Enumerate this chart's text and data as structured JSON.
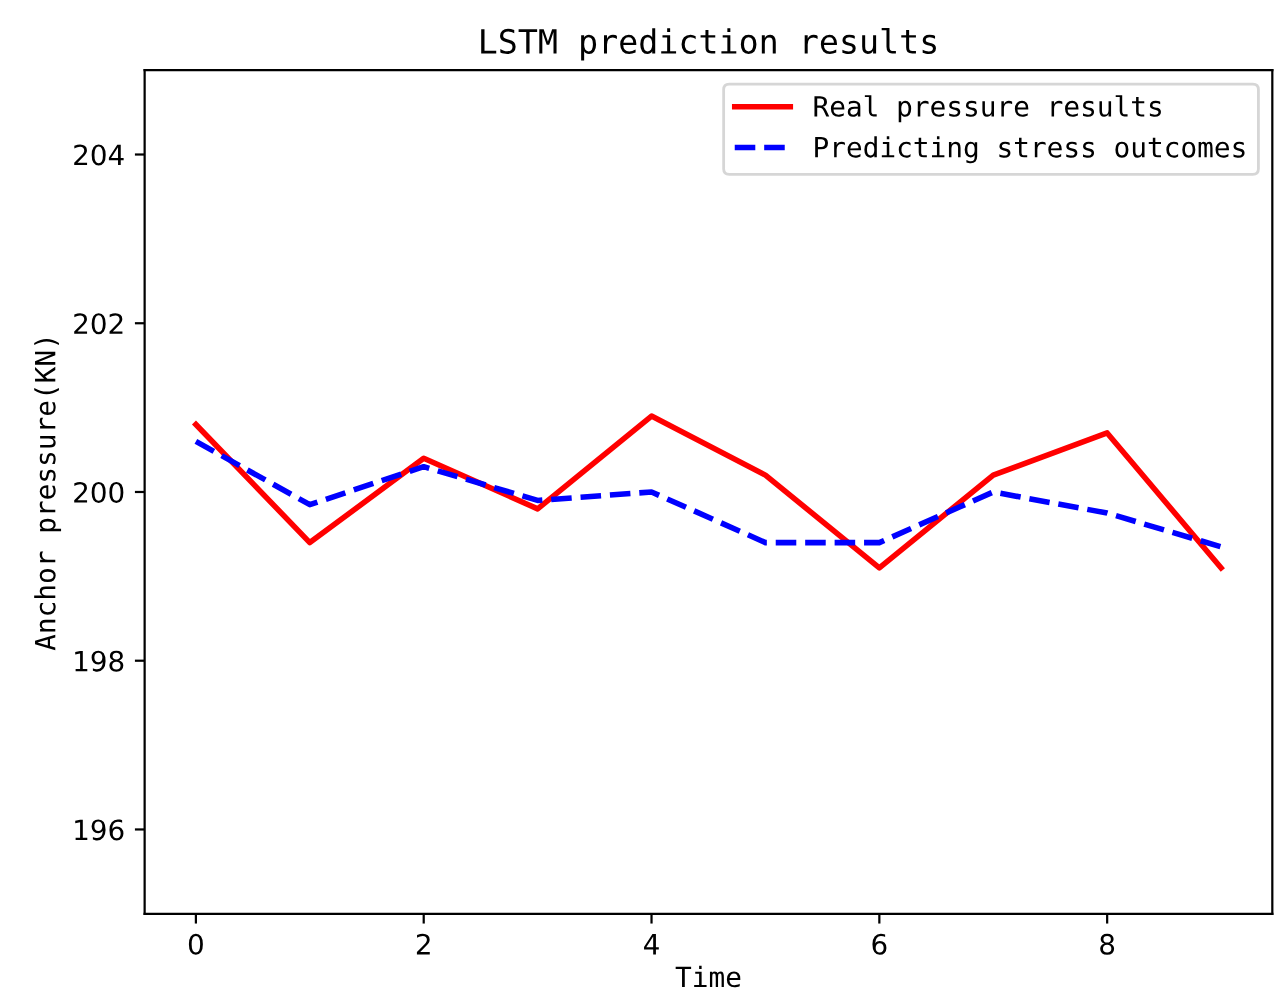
{
  "chart_data": {
    "type": "line",
    "title": "LSTM prediction results",
    "xlabel": "Time",
    "ylabel": "Anchor pressure(KN)",
    "x": [
      0,
      1,
      2,
      3,
      4,
      5,
      6,
      7,
      8,
      9
    ],
    "series": [
      {
        "name": "Real pressure results",
        "color": "#ff0000",
        "line_style": "solid",
        "values": [
          200.8,
          199.4,
          200.4,
          199.8,
          200.9,
          200.2,
          199.1,
          200.2,
          200.7,
          199.1
        ]
      },
      {
        "name": "Predicting stress outcomes",
        "color": "#0000ff",
        "line_style": "dashed",
        "values": [
          200.6,
          199.85,
          200.3,
          199.9,
          200.0,
          199.4,
          199.4,
          200.0,
          199.75,
          199.35
        ]
      }
    ],
    "xlim": [
      -0.45,
      9.45
    ],
    "ylim": [
      195,
      205
    ],
    "xticks": [
      0,
      2,
      4,
      6,
      8
    ],
    "yticks": [
      196,
      198,
      200,
      202,
      204
    ],
    "grid": false,
    "legend": "top right"
  }
}
